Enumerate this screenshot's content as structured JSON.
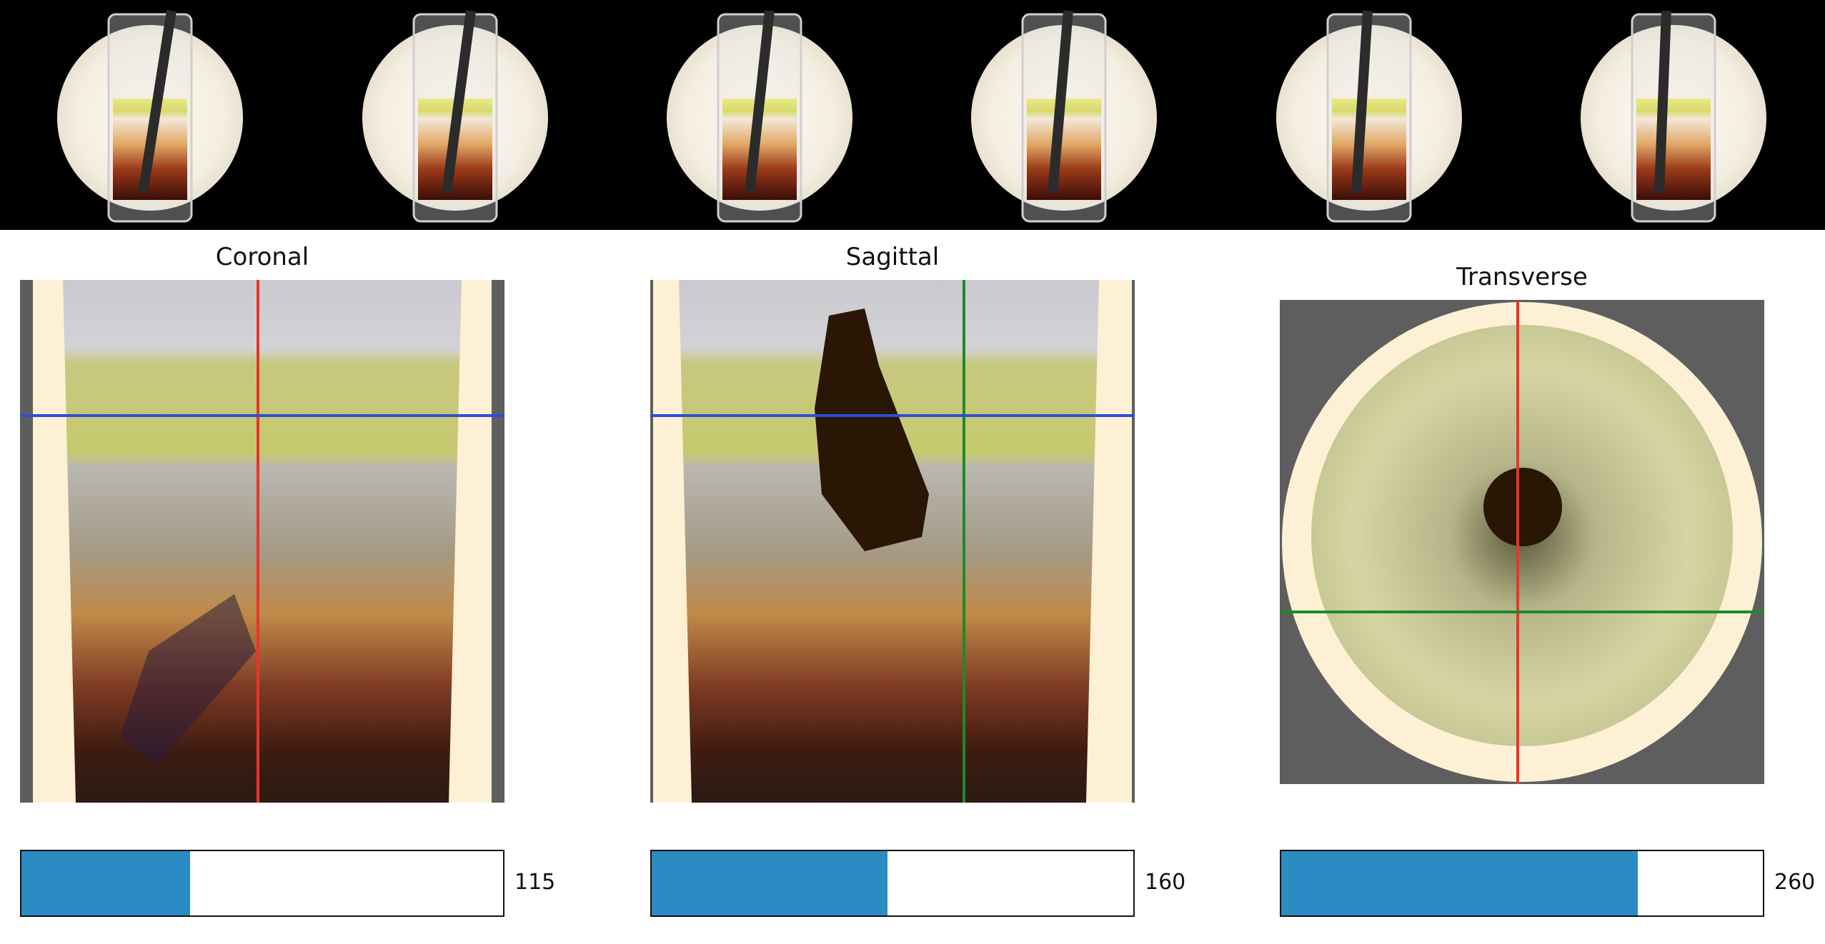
{
  "photo_strip": {
    "frames": [
      {
        "name": "frame-1"
      },
      {
        "name": "frame-2"
      },
      {
        "name": "frame-3"
      },
      {
        "name": "frame-4"
      },
      {
        "name": "frame-5"
      },
      {
        "name": "frame-6"
      }
    ]
  },
  "panels": [
    {
      "title": "Coronal",
      "slider_value": "115",
      "slider_fraction": 0.35
    },
    {
      "title": "Sagittal",
      "slider_value": "160",
      "slider_fraction": 0.49
    },
    {
      "title": "Transverse",
      "slider_value": "260",
      "slider_fraction": 0.74
    }
  ],
  "colors": {
    "crosshair_red": "#e8352a",
    "crosshair_blue": "#2d4fd6",
    "crosshair_green": "#1d8a2a",
    "slider_fill": "#2b8cc4",
    "tube_background": "#fdf0d5",
    "outside_background": "#5e5e5e"
  }
}
